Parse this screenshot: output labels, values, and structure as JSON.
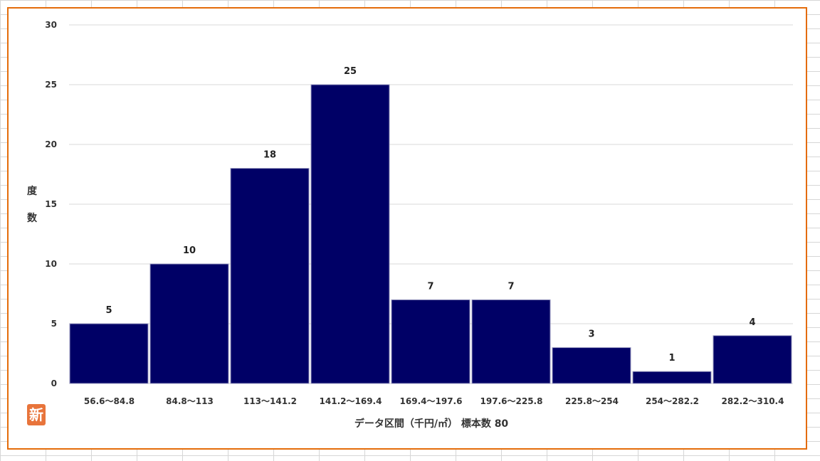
{
  "badge": {
    "label": "新"
  },
  "chart_data": {
    "type": "bar",
    "categories": [
      "56.6〜84.8",
      "84.8〜113",
      "113〜141.2",
      "141.2〜169.4",
      "169.4〜197.6",
      "197.6〜225.8",
      "225.8〜254",
      "254〜282.2",
      "282.2〜310.4"
    ],
    "values": [
      5,
      10,
      18,
      25,
      7,
      7,
      3,
      1,
      4
    ],
    "ylabel": "度数",
    "xlabel": "データ区間（千円/㎡） 標本数 80",
    "ylim": [
      0,
      30
    ],
    "yticks": [
      0,
      5,
      10,
      15,
      20,
      25,
      30
    ],
    "grid": true,
    "data_labels": true,
    "bar_color": "#000066",
    "frame_color": "#e46c0a"
  }
}
